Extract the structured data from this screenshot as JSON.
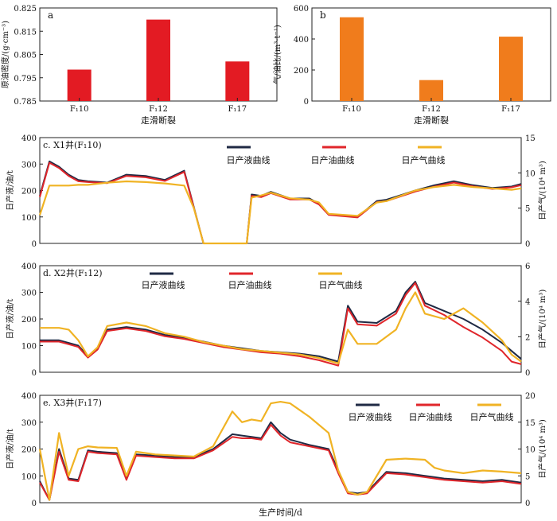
{
  "chart_data": [
    {
      "id": "a",
      "type": "bar",
      "panel_label": "a",
      "title": "",
      "categories": [
        "F₁10",
        "F₁12",
        "F₁17"
      ],
      "values": [
        0.7985,
        0.82,
        0.802
      ],
      "color": "#e31b23",
      "ylabel": "原油密度/(g·cm⁻³)",
      "xlabel": "走滑断裂",
      "ylim": [
        0.785,
        0.825
      ],
      "yticks": [
        0.785,
        0.795,
        0.805,
        0.815,
        0.825
      ],
      "ytick_labels": [
        "0.785",
        "0.795",
        "0.805",
        "0.815",
        "0.825"
      ]
    },
    {
      "id": "b",
      "type": "bar",
      "panel_label": "b",
      "title": "",
      "categories": [
        "F₁10",
        "F₁12",
        "F₁17"
      ],
      "values": [
        540,
        135,
        415
      ],
      "color": "#f07c1c",
      "ylabel": "气/油比/(m³·t⁻¹)",
      "xlabel": "走滑断裂",
      "ylim": [
        0,
        600
      ],
      "yticks": [
        0,
        200,
        400,
        600
      ],
      "ytick_labels": [
        "0",
        "200",
        "400",
        "600"
      ]
    },
    {
      "id": "c",
      "type": "line",
      "panel_label": "c. X1井(F₁10)",
      "ylabel_left": "日产液/油/t",
      "ylabel_right": "日产气/(10⁴ m³)",
      "ylim_left": [
        0,
        400
      ],
      "ylim_right": [
        0,
        15
      ],
      "yticks_left": [
        "0",
        "100",
        "200",
        "300",
        "400"
      ],
      "yticks_right": [
        "0",
        "5",
        "10",
        "15"
      ],
      "legend": [
        "日产液曲线",
        "日产油曲线",
        "日产气曲线"
      ],
      "series": [
        {
          "name": "日产液曲线",
          "axis": "left",
          "color": "#1f2a44",
          "x": [
            0,
            2,
            4,
            6,
            8,
            10,
            14,
            18,
            22,
            26,
            30,
            34,
            38,
            40,
            43,
            44,
            46,
            48,
            52,
            56,
            58,
            60,
            66,
            70,
            72,
            78,
            82,
            86,
            90,
            94,
            98,
            100
          ],
          "y": [
            180,
            310,
            290,
            260,
            240,
            235,
            230,
            260,
            255,
            240,
            275,
            0,
            0,
            0,
            0,
            185,
            180,
            195,
            170,
            170,
            150,
            110,
            100,
            160,
            165,
            200,
            220,
            235,
            220,
            210,
            215,
            225
          ]
        },
        {
          "name": "日产油曲线",
          "axis": "left",
          "color": "#e0262b",
          "x": [
            0,
            2,
            4,
            6,
            8,
            10,
            14,
            18,
            22,
            26,
            30,
            34,
            38,
            40,
            43,
            44,
            46,
            48,
            52,
            56,
            58,
            60,
            66,
            70,
            72,
            78,
            82,
            86,
            90,
            94,
            98,
            100
          ],
          "y": [
            175,
            305,
            285,
            255,
            235,
            232,
            228,
            255,
            250,
            236,
            270,
            0,
            0,
            0,
            0,
            180,
            175,
            190,
            166,
            166,
            147,
            108,
            98,
            156,
            160,
            196,
            215,
            230,
            216,
            206,
            212,
            220
          ]
        },
        {
          "name": "日产气曲线",
          "axis": "right",
          "color": "#f0b324",
          "x": [
            0,
            2,
            4,
            6,
            8,
            10,
            14,
            18,
            22,
            26,
            30,
            32,
            34,
            38,
            40,
            43,
            44,
            46,
            48,
            52,
            56,
            58,
            60,
            66,
            70,
            72,
            78,
            82,
            86,
            90,
            94,
            98,
            100
          ],
          "y": [
            4,
            8.2,
            8.2,
            8.2,
            8.3,
            8.3,
            8.6,
            8.8,
            8.7,
            8.5,
            8.2,
            5,
            0,
            0,
            0,
            0,
            6.5,
            6.8,
            7.2,
            6.4,
            6.2,
            5.8,
            4.2,
            3.9,
            5.8,
            6.0,
            7.5,
            8.0,
            8.3,
            8.0,
            7.8,
            7.6,
            7.8
          ]
        }
      ]
    },
    {
      "id": "d",
      "type": "line",
      "panel_label": "d. X2井(F₁12)",
      "ylabel_left": "日产液/油/t",
      "ylabel_right": "日产气/(10⁴ m³)",
      "ylim_left": [
        0,
        400
      ],
      "ylim_right": [
        0,
        6
      ],
      "yticks_left": [
        "0",
        "100",
        "200",
        "300",
        "400"
      ],
      "yticks_right": [
        "0",
        "2",
        "4",
        "6"
      ],
      "legend": [
        "日产液曲线",
        "日产油曲线",
        "日产气曲线"
      ],
      "series": [
        {
          "name": "日产液曲线",
          "axis": "left",
          "color": "#1f2a44",
          "x": [
            0,
            4,
            6,
            8,
            10,
            12,
            14,
            18,
            22,
            26,
            30,
            34,
            38,
            42,
            46,
            50,
            54,
            58,
            62,
            64,
            66,
            70,
            74,
            76,
            78,
            80,
            84,
            88,
            92,
            96,
            98,
            100
          ],
          "y": [
            120,
            120,
            110,
            100,
            60,
            90,
            160,
            170,
            160,
            140,
            130,
            115,
            100,
            90,
            80,
            75,
            70,
            60,
            40,
            250,
            190,
            185,
            230,
            300,
            340,
            260,
            230,
            200,
            160,
            110,
            80,
            50
          ]
        },
        {
          "name": "日产油曲线",
          "axis": "left",
          "color": "#e0262b",
          "x": [
            0,
            4,
            6,
            8,
            10,
            12,
            14,
            18,
            22,
            26,
            30,
            34,
            38,
            42,
            46,
            50,
            54,
            58,
            62,
            64,
            66,
            70,
            74,
            76,
            78,
            80,
            84,
            88,
            92,
            96,
            98,
            100
          ],
          "y": [
            115,
            115,
            105,
            95,
            55,
            85,
            155,
            165,
            155,
            135,
            125,
            110,
            95,
            85,
            75,
            70,
            60,
            45,
            25,
            240,
            180,
            175,
            220,
            290,
            335,
            250,
            215,
            170,
            130,
            80,
            40,
            30
          ]
        },
        {
          "name": "日产气曲线",
          "axis": "right",
          "color": "#f0b324",
          "x": [
            0,
            4,
            6,
            8,
            10,
            12,
            14,
            18,
            22,
            26,
            30,
            34,
            38,
            42,
            46,
            50,
            54,
            58,
            62,
            64,
            66,
            70,
            74,
            76,
            78,
            80,
            84,
            88,
            92,
            96,
            98,
            100
          ],
          "y": [
            2.5,
            2.5,
            2.4,
            1.8,
            0.9,
            1.4,
            2.6,
            2.8,
            2.6,
            2.2,
            2.0,
            1.7,
            1.5,
            1.3,
            1.2,
            1.1,
            1.0,
            0.8,
            0.5,
            2.4,
            1.6,
            1.6,
            2.4,
            3.6,
            4.5,
            3.3,
            3.0,
            3.6,
            2.8,
            1.8,
            1.0,
            0.6
          ]
        }
      ]
    },
    {
      "id": "e",
      "type": "line",
      "panel_label": "e. X3井(F₁17)",
      "ylabel_left": "日产液/油/t",
      "ylabel_right": "日产气/(10⁴ m³)",
      "ylim_left": [
        0,
        400
      ],
      "ylim_right": [
        0,
        20
      ],
      "yticks_left": [
        "0",
        "100",
        "200",
        "300",
        "400"
      ],
      "yticks_right": [
        "0",
        "5",
        "10",
        "15",
        "20"
      ],
      "legend": [
        "日产液曲线",
        "日产油曲线",
        "日产气曲线"
      ],
      "xlabel": "生产时间/d",
      "series": [
        {
          "name": "日产液曲线",
          "axis": "left",
          "color": "#1f2a44",
          "x": [
            0,
            2,
            4,
            6,
            8,
            10,
            12,
            16,
            18,
            20,
            24,
            28,
            32,
            36,
            40,
            42,
            44,
            46,
            48,
            50,
            52,
            56,
            60,
            62,
            64,
            66,
            68,
            72,
            76,
            80,
            82,
            84,
            88,
            92,
            96,
            100
          ],
          "y": [
            80,
            10,
            200,
            90,
            85,
            195,
            190,
            185,
            90,
            180,
            175,
            170,
            170,
            200,
            255,
            250,
            245,
            240,
            300,
            260,
            235,
            215,
            200,
            120,
            40,
            35,
            40,
            115,
            110,
            100,
            95,
            90,
            85,
            80,
            85,
            75
          ]
        },
        {
          "name": "日产油曲线",
          "axis": "left",
          "color": "#e0262b",
          "x": [
            0,
            2,
            4,
            6,
            8,
            10,
            12,
            16,
            18,
            20,
            24,
            28,
            32,
            36,
            40,
            42,
            44,
            46,
            48,
            50,
            52,
            56,
            60,
            62,
            64,
            66,
            68,
            72,
            76,
            80,
            82,
            84,
            88,
            92,
            96,
            100
          ],
          "y": [
            75,
            10,
            190,
            85,
            80,
            190,
            185,
            180,
            85,
            175,
            170,
            165,
            165,
            195,
            245,
            240,
            240,
            235,
            290,
            250,
            225,
            210,
            195,
            110,
            35,
            30,
            35,
            110,
            105,
            95,
            90,
            85,
            80,
            75,
            80,
            70
          ]
        },
        {
          "name": "日产气曲线",
          "axis": "right",
          "color": "#f0b324",
          "x": [
            0,
            2,
            4,
            6,
            8,
            10,
            12,
            16,
            18,
            20,
            24,
            28,
            32,
            36,
            40,
            42,
            44,
            46,
            48,
            50,
            52,
            56,
            60,
            62,
            64,
            66,
            68,
            72,
            76,
            80,
            82,
            84,
            88,
            92,
            96,
            100
          ],
          "y": [
            10,
            0.5,
            13,
            5,
            10,
            10.5,
            10.3,
            10.2,
            5,
            9.5,
            9.0,
            8.8,
            8.6,
            10.5,
            17,
            15,
            15.5,
            15.2,
            18.5,
            18.8,
            18.5,
            16,
            13,
            6,
            2,
            1.5,
            2,
            8,
            8.2,
            8,
            6.5,
            6,
            5.5,
            6,
            5.8,
            5.5
          ]
        }
      ]
    }
  ]
}
